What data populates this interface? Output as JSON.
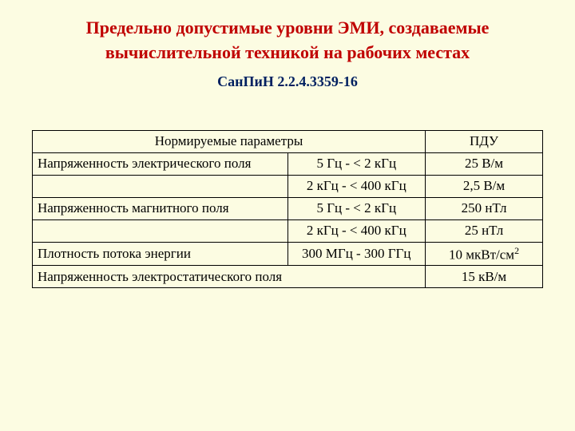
{
  "title": "Предельно допустимые уровни ЭМИ, создаваемые вычислительной техникой на рабочих местах",
  "subtitle": "СанПиН 2.2.4.3359-16",
  "title_color": "#c00000",
  "subtitle_color": "#002060",
  "background_color": "#fcfce2",
  "border_color": "#000000",
  "text_color": "#000000",
  "font_family": "Times New Roman",
  "title_fontsize": 22,
  "subtitle_fontsize": 18,
  "table_fontsize": 17,
  "table": {
    "type": "table",
    "columns": [
      {
        "key": "param",
        "label": "Нормируемые параметры",
        "width": "50%",
        "align": "left"
      },
      {
        "key": "range",
        "label": "",
        "width": "27%",
        "align": "center"
      },
      {
        "key": "pdu",
        "label": "ПДУ",
        "width": "23%",
        "align": "center"
      }
    ],
    "header": {
      "param_colspan": 2,
      "param_label": "Нормируемые параметры",
      "pdu_label": "ПДУ"
    },
    "rows": [
      {
        "param": "Напряженность электрического поля",
        "range": "5 Гц - < 2 кГц",
        "pdu": "25 В/м"
      },
      {
        "param": "",
        "range": "2 кГц - < 400 кГц",
        "pdu": "2,5 В/м"
      },
      {
        "param": "Напряженность магнитного поля",
        "range": "5 Гц - < 2 кГц",
        "pdu": "250 нТл"
      },
      {
        "param": "",
        "range": "2 кГц - < 400 кГц",
        "pdu": "25 нТл"
      },
      {
        "param": "Плотность потока энергии",
        "range": "300 МГц - 300 ГГц",
        "pdu_html": "10 мкВт/см<sup class='sup'>2</sup>",
        "pdu": "10 мкВт/см2"
      },
      {
        "param_colspan": 2,
        "param": "Напряженность электростатического поля",
        "pdu": "15 кВ/м"
      }
    ]
  }
}
